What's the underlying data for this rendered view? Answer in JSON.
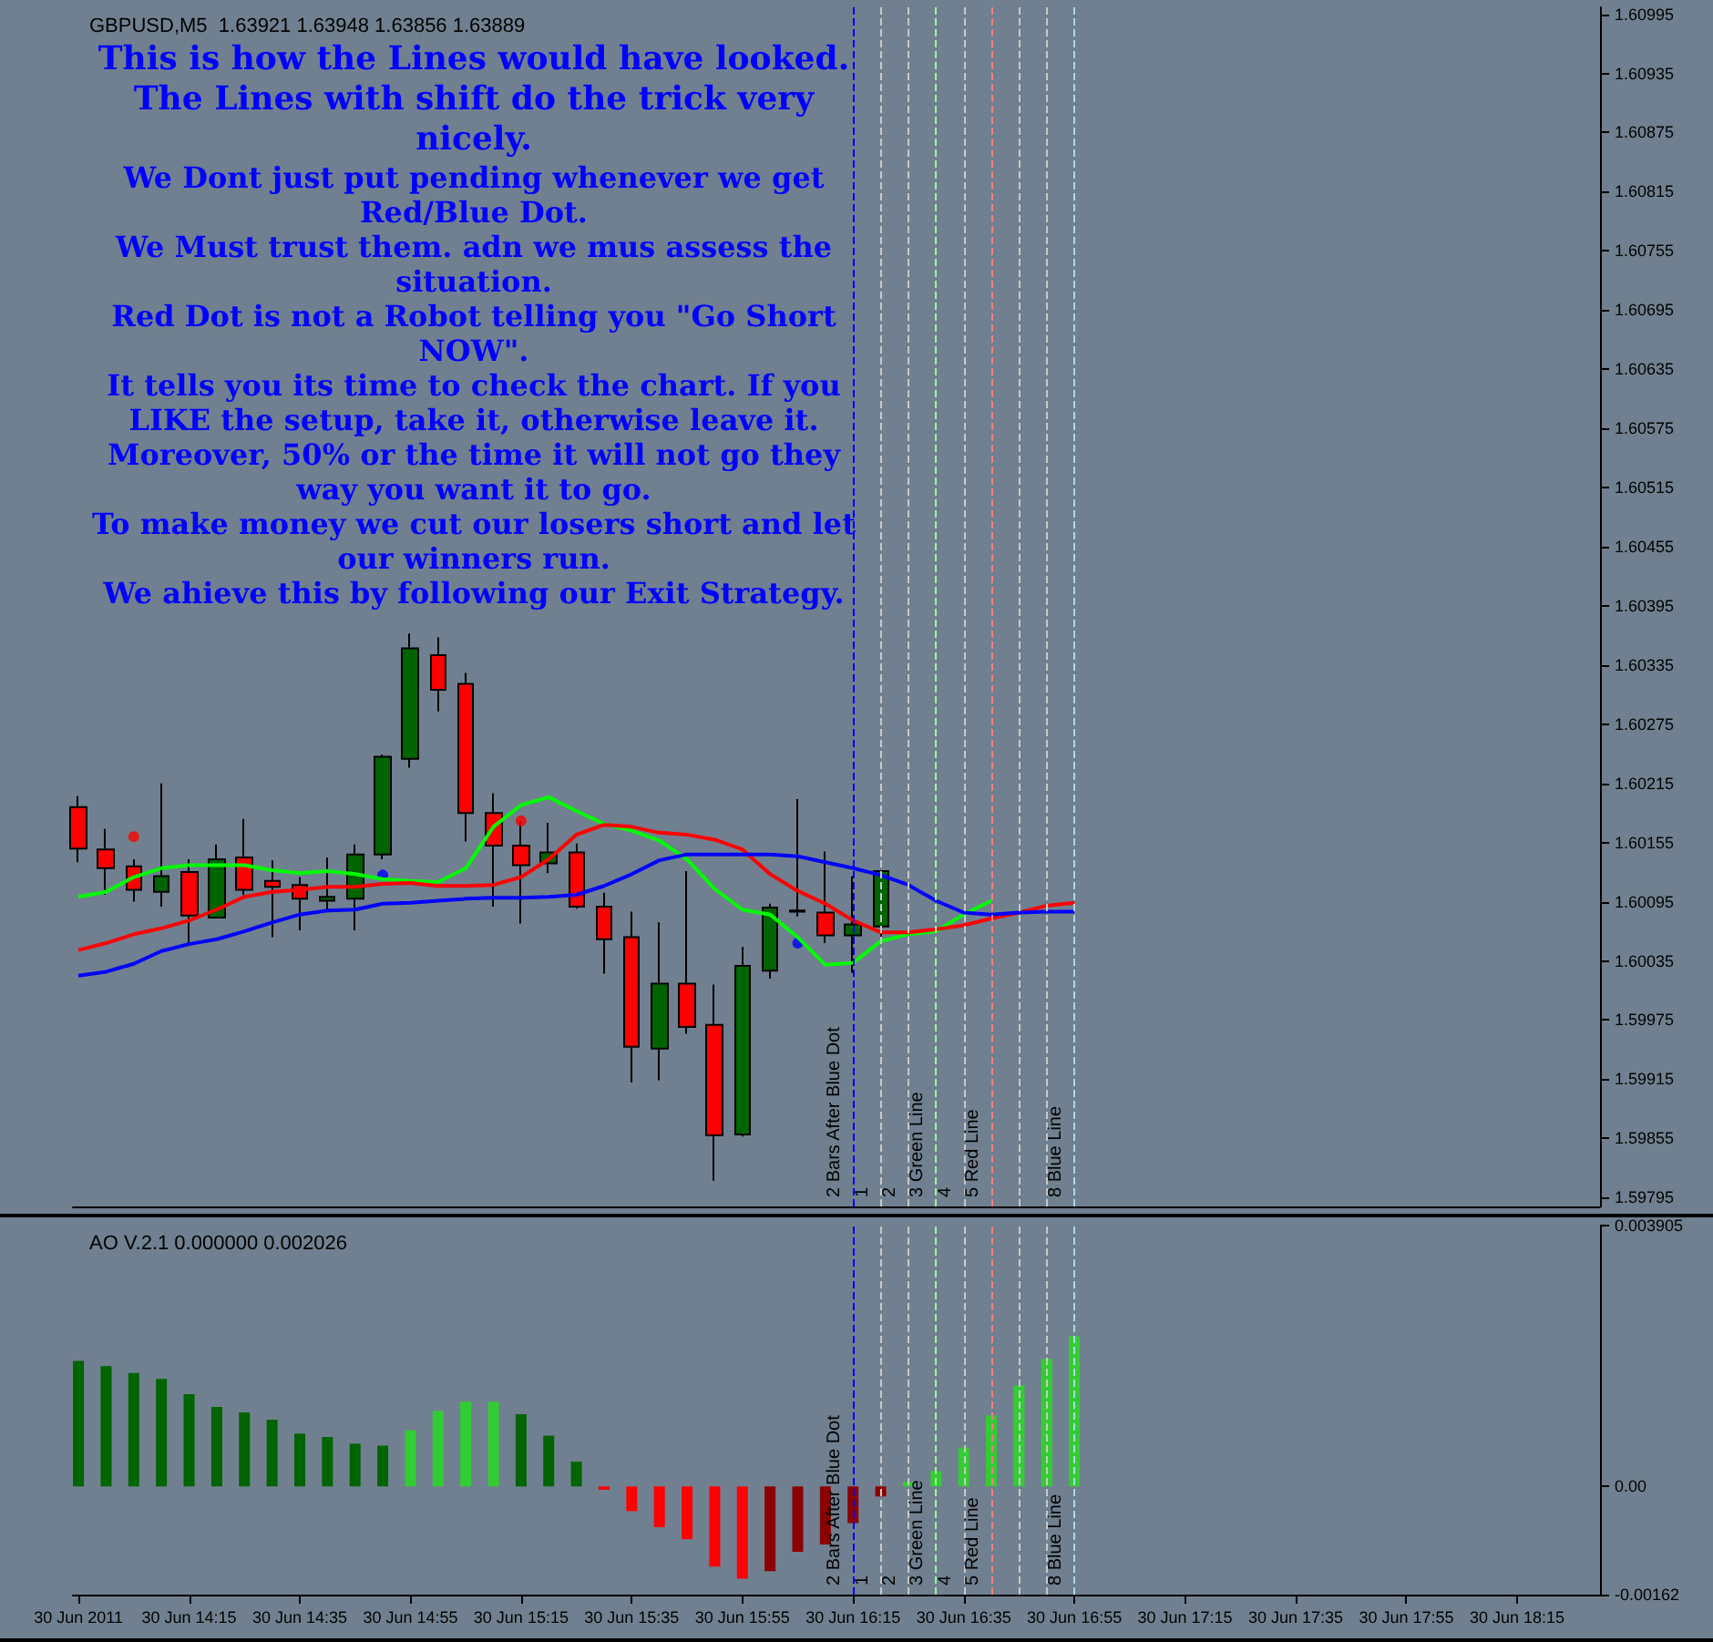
{
  "chart_data": [
    {
      "type": "candlestick",
      "title": "GBPUSD,M5  1.63921 1.63948 1.63856 1.63889",
      "annotations": [
        "This is how the Lines would have looked. The Lines with shift do the trick very nicely.",
        "We Dont just put pending whenever we get Red/Blue Dot.",
        "We Must trust them. adn we mus assess the situation.",
        "Red Dot is not a Robot telling you \"Go Short NOW\".",
        "It tells you its time to check the chart. If you LIKE the setup, take it, otherwise leave it.",
        "Moreover, 50% or the time it will not go they way you want it to go.",
        "To make money we cut our losers short and let our winners run.",
        "We ahieve this by following our Exit Strategy."
      ],
      "x": [
        "2011-06-30T13:55",
        "2011-06-30T14:00",
        "2011-06-30T14:05",
        "2011-06-30T14:10",
        "2011-06-30T14:15",
        "2011-06-30T14:20",
        "2011-06-30T14:25",
        "2011-06-30T14:30",
        "2011-06-30T14:35",
        "2011-06-30T14:40",
        "2011-06-30T14:45",
        "2011-06-30T14:50",
        "2011-06-30T14:55",
        "2011-06-30T15:00",
        "2011-06-30T15:05",
        "2011-06-30T15:10",
        "2011-06-30T15:15",
        "2011-06-30T15:20",
        "2011-06-30T15:25",
        "2011-06-30T15:30",
        "2011-06-30T15:35",
        "2011-06-30T15:40",
        "2011-06-30T15:45",
        "2011-06-30T15:50",
        "2011-06-30T15:55",
        "2011-06-30T16:00",
        "2011-06-30T16:05",
        "2011-06-30T16:10",
        "2011-06-30T16:15",
        "2011-06-30T16:20",
        "2011-06-30T16:25",
        "2011-06-30T16:30",
        "2011-06-30T16:35",
        "2011-06-30T16:40",
        "2011-06-30T16:45",
        "2011-06-30T16:50",
        "2011-06-30T16:55"
      ],
      "series": [
        {
          "type": "candlestick",
          "x": [
            "2011-06-30T13:55",
            "2011-06-30T14:00",
            "2011-06-30T14:05",
            "2011-06-30T14:10",
            "2011-06-30T14:15",
            "2011-06-30T14:20",
            "2011-06-30T14:25",
            "2011-06-30T14:30",
            "2011-06-30T14:35",
            "2011-06-30T14:40",
            "2011-06-30T14:45",
            "2011-06-30T14:50",
            "2011-06-30T14:55",
            "2011-06-30T15:00",
            "2011-06-30T15:05",
            "2011-06-30T15:10",
            "2011-06-30T15:15",
            "2011-06-30T15:20",
            "2011-06-30T15:25",
            "2011-06-30T15:30",
            "2011-06-30T15:35",
            "2011-06-30T15:40",
            "2011-06-30T15:45",
            "2011-06-30T15:50",
            "2011-06-30T15:55",
            "2011-06-30T16:00",
            "2011-06-30T16:05",
            "2011-06-30T16:10",
            "2011-06-30T16:15",
            "2011-06-30T16:20"
          ],
          "ohlc": [
            [
              1.60191,
              1.60202,
              1.60135,
              1.60149
            ],
            [
              1.60148,
              1.60169,
              1.60102,
              1.60129
            ],
            [
              1.60131,
              1.60138,
              1.60095,
              1.60107
            ],
            [
              1.60105,
              1.60215,
              1.6009,
              1.60121
            ],
            [
              1.60125,
              1.60138,
              1.60053,
              1.60081
            ],
            [
              1.60079,
              1.60153,
              1.60079,
              1.60138
            ],
            [
              1.6014,
              1.60179,
              1.60102,
              1.60107
            ],
            [
              1.60116,
              1.60137,
              1.60059,
              1.6011
            ],
            [
              1.60112,
              1.6012,
              1.60066,
              1.60098
            ],
            [
              1.60096,
              1.6014,
              1.60085,
              1.601
            ],
            [
              1.60098,
              1.60153,
              1.60066,
              1.60143
            ],
            [
              1.60143,
              1.60244,
              1.60138,
              1.60242
            ],
            [
              1.6024,
              1.60367,
              1.60231,
              1.60352
            ],
            [
              1.60345,
              1.60363,
              1.60288,
              1.6031
            ],
            [
              1.60316,
              1.60327,
              1.60156,
              1.60185
            ],
            [
              1.60185,
              1.60205,
              1.6009,
              1.60152
            ],
            [
              1.60152,
              1.60177,
              1.60073,
              1.60132
            ],
            [
              1.60134,
              1.60175,
              1.60124,
              1.60145
            ],
            [
              1.60145,
              1.60154,
              1.60088,
              1.6009
            ],
            [
              1.6009,
              1.60104,
              1.60022,
              1.60057
            ],
            [
              1.60059,
              1.60085,
              1.59912,
              1.59948
            ],
            [
              1.59946,
              1.60074,
              1.59914,
              1.60012
            ],
            [
              1.60012,
              1.60126,
              1.59961,
              1.59968
            ],
            [
              1.5997,
              1.60011,
              1.59812,
              1.59858
            ],
            [
              1.59859,
              1.60049,
              1.59857,
              1.6003
            ],
            [
              1.60025,
              1.60093,
              1.60017,
              1.60089
            ],
            [
              1.60086,
              1.60199,
              1.6008,
              1.60085
            ],
            [
              1.60084,
              1.60146,
              1.60053,
              1.60061
            ],
            [
              1.60061,
              1.60121,
              1.60023,
              1.60072
            ],
            [
              1.6007,
              1.60126,
              1.60059,
              1.60126
            ]
          ],
          "colors": [
            "#ff0000",
            "#ff0000",
            "#ff0000",
            "#006400",
            "#ff0000",
            "#006400",
            "#ff0000",
            "#ff0000",
            "#ff0000",
            "#006400",
            "#006400",
            "#006400",
            "#006400",
            "#ff0000",
            "#ff0000",
            "#ff0000",
            "#ff0000",
            "#006400",
            "#ff0000",
            "#ff0000",
            "#ff0000",
            "#006400",
            "#ff0000",
            "#ff0000",
            "#006400",
            "#006400",
            "#000000",
            "#ff0000",
            "#006400",
            "#006400"
          ]
        },
        {
          "type": "line",
          "marker": "none",
          "color": "#00ff00",
          "x": [
            "2011-06-30T13:55",
            "2011-06-30T14:00",
            "2011-06-30T14:05",
            "2011-06-30T14:10",
            "2011-06-30T14:15",
            "2011-06-30T14:20",
            "2011-06-30T14:25",
            "2011-06-30T14:30",
            "2011-06-30T14:35",
            "2011-06-30T14:40",
            "2011-06-30T14:45",
            "2011-06-30T14:50",
            "2011-06-30T14:55",
            "2011-06-30T15:00",
            "2011-06-30T15:05",
            "2011-06-30T15:10",
            "2011-06-30T15:15",
            "2011-06-30T15:20",
            "2011-06-30T15:25",
            "2011-06-30T15:30",
            "2011-06-30T15:35",
            "2011-06-30T15:40",
            "2011-06-30T15:45",
            "2011-06-30T15:50",
            "2011-06-30T15:55",
            "2011-06-30T16:00",
            "2011-06-30T16:05",
            "2011-06-30T16:10",
            "2011-06-30T16:15",
            "2011-06-30T16:20",
            "2011-06-30T16:25",
            "2011-06-30T16:30",
            "2011-06-30T16:35",
            "2011-06-30T16:40"
          ],
          "values": [
            1.601,
            1.60105,
            1.6012,
            1.60129,
            1.60132,
            1.60132,
            1.60132,
            1.60127,
            1.60124,
            1.60126,
            1.60123,
            1.60118,
            1.60116,
            1.60115,
            1.60129,
            1.60171,
            1.60193,
            1.60201,
            1.60187,
            1.60174,
            1.60167,
            1.60157,
            1.60138,
            1.60108,
            1.60087,
            1.60082,
            1.60059,
            1.60031,
            1.60033,
            1.60055,
            1.60062,
            1.60065,
            1.60082,
            1.60096
          ]
        },
        {
          "type": "line",
          "marker": "none",
          "color": "#ff0000",
          "values": [
            1.60046,
            1.60053,
            1.60062,
            1.60068,
            1.60076,
            1.60087,
            1.601,
            1.60105,
            1.60107,
            1.6011,
            1.6011,
            1.60113,
            1.60114,
            1.60111,
            1.60111,
            1.60112,
            1.6012,
            1.60138,
            1.60163,
            1.60173,
            1.60171,
            1.60165,
            1.60163,
            1.60158,
            1.60148,
            1.60123,
            1.60106,
            1.60093,
            1.60076,
            1.60064,
            1.60064,
            1.60067,
            1.60071,
            1.60078,
            1.60084,
            1.60091,
            1.60094
          ]
        },
        {
          "type": "line",
          "marker": "none",
          "color": "#0000ff",
          "values": [
            1.6002,
            1.60024,
            1.60032,
            1.60045,
            1.60052,
            1.60057,
            1.60065,
            1.60074,
            1.60082,
            1.60086,
            1.60087,
            1.60093,
            1.60094,
            1.60096,
            1.60098,
            1.60099,
            1.60099,
            1.601,
            1.60102,
            1.60111,
            1.60123,
            1.60137,
            1.60143,
            1.60143,
            1.60143,
            1.60143,
            1.60141,
            1.60135,
            1.60129,
            1.60122,
            1.60112,
            1.60096,
            1.60084,
            1.60082,
            1.60084,
            1.60085,
            1.60085
          ]
        },
        {
          "type": "scatter",
          "marker": "circle",
          "color": "#ff0000",
          "x": [
            "2011-06-30T14:05",
            "2011-06-30T15:15"
          ],
          "values": [
            1.60161,
            1.60177
          ]
        },
        {
          "type": "scatter",
          "marker": "circle",
          "color": "#0000ff",
          "x": [
            "2011-06-30T14:50",
            "2011-06-30T16:05"
          ],
          "values": [
            1.60122,
            1.60053
          ]
        }
      ],
      "xlim": [
        "2011-06-30T13:54",
        "2011-06-30T18:30"
      ],
      "ylim": [
        1.59786,
        1.61002
      ],
      "yticks": [
        1.60995,
        1.60935,
        1.60875,
        1.60815,
        1.60755,
        1.60695,
        1.60635,
        1.60575,
        1.60515,
        1.60455,
        1.60395,
        1.60335,
        1.60275,
        1.60215,
        1.60155,
        1.60095,
        1.60035,
        1.59975,
        1.59915,
        1.59855,
        1.59795
      ],
      "tick_labels": "y",
      "ref_lines": [
        {
          "axis": "x",
          "value": "2011-06-30T16:15",
          "label": "2 Bars After Blue Dot",
          "color": "#0000ff",
          "line_style": "dashed"
        },
        {
          "axis": "x",
          "value": "2011-06-30T16:20",
          "label": "1",
          "color": "#c8c8c8",
          "line_style": "dashed"
        },
        {
          "axis": "x",
          "value": "2011-06-30T16:25",
          "label": "2",
          "color": "#c8c8c8",
          "line_style": "dashed"
        },
        {
          "axis": "x",
          "value": "2011-06-30T16:30",
          "label": "3 Green Line",
          "color": "#98fb98",
          "line_style": "dashed"
        },
        {
          "axis": "x",
          "value": "2011-06-30T16:35",
          "label": "4",
          "color": "#c8c8c8",
          "line_style": "dashed"
        },
        {
          "axis": "x",
          "value": "2011-06-30T16:40",
          "label": "5 Red Line",
          "color": "#f08080",
          "line_style": "dashed"
        },
        {
          "axis": "x",
          "value": "2011-06-30T16:45",
          "label": null,
          "color": "#c8c8c8",
          "line_style": "dashed"
        },
        {
          "axis": "x",
          "value": "2011-06-30T16:50",
          "label": null,
          "color": "#c8c8c8",
          "line_style": "dashed"
        },
        {
          "axis": "x",
          "value": "2011-06-30T16:55",
          "label": "8 Blue Line",
          "color": "#add8e6",
          "line_style": "dashed"
        }
      ]
    },
    {
      "type": "bar",
      "title": "AO V.2.1 0.000000 0.002026",
      "x": [
        "2011-06-30T13:55",
        "2011-06-30T14:00",
        "2011-06-30T14:05",
        "2011-06-30T14:10",
        "2011-06-30T14:15",
        "2011-06-30T14:20",
        "2011-06-30T14:25",
        "2011-06-30T14:30",
        "2011-06-30T14:35",
        "2011-06-30T14:40",
        "2011-06-30T14:45",
        "2011-06-30T14:50",
        "2011-06-30T14:55",
        "2011-06-30T15:00",
        "2011-06-30T15:05",
        "2011-06-30T15:10",
        "2011-06-30T15:15",
        "2011-06-30T15:20",
        "2011-06-30T15:25",
        "2011-06-30T15:30",
        "2011-06-30T15:35",
        "2011-06-30T15:40",
        "2011-06-30T15:45",
        "2011-06-30T15:50",
        "2011-06-30T15:55",
        "2011-06-30T16:00",
        "2011-06-30T16:05",
        "2011-06-30T16:10",
        "2011-06-30T16:15",
        "2011-06-30T16:20",
        "2011-06-30T16:25",
        "2011-06-30T16:30",
        "2011-06-30T16:35",
        "2011-06-30T16:40",
        "2011-06-30T16:45",
        "2011-06-30T16:50",
        "2011-06-30T16:55"
      ],
      "values": [
        0.00188,
        0.0018,
        0.0017,
        0.00161,
        0.00138,
        0.00119,
        0.00111,
        0.001,
        0.00079,
        0.00074,
        0.00064,
        0.00061,
        0.00084,
        0.00113,
        0.00127,
        0.00127,
        0.00108,
        0.00076,
        0.00037,
        -5e-05,
        -0.00037,
        -0.00061,
        -0.00079,
        -0.0012,
        -0.00138,
        -0.00127,
        -0.00098,
        -0.00087,
        -0.00055,
        -0.00015,
        7e-05,
        0.00023,
        0.00058,
        0.00106,
        0.00151,
        0.00191,
        0.00225
      ],
      "colors": [
        "#006400",
        "#006400",
        "#006400",
        "#006400",
        "#006400",
        "#006400",
        "#006400",
        "#006400",
        "#006400",
        "#006400",
        "#006400",
        "#006400",
        "#32cd32",
        "#32cd32",
        "#32cd32",
        "#32cd32",
        "#006400",
        "#006400",
        "#006400",
        "#ff0000",
        "#ff0000",
        "#ff0000",
        "#ff0000",
        "#ff0000",
        "#ff0000",
        "#8b0000",
        "#8b0000",
        "#8b0000",
        "#8b0000",
        "#8b0000",
        "#32cd32",
        "#32cd32",
        "#32cd32",
        "#32cd32",
        "#32cd32",
        "#32cd32",
        "#32cd32"
      ],
      "xlim": [
        "2011-06-30T13:54",
        "2011-06-30T18:30"
      ],
      "xticks": [
        {
          "value": "2011-06-30T13:55",
          "label": "30 Jun 2011"
        },
        {
          "value": "2011-06-30T14:15",
          "label": "30 Jun 14:15"
        },
        {
          "value": "2011-06-30T14:35",
          "label": "30 Jun 14:35"
        },
        {
          "value": "2011-06-30T14:55",
          "label": "30 Jun 14:55"
        },
        {
          "value": "2011-06-30T15:15",
          "label": "30 Jun 15:15"
        },
        {
          "value": "2011-06-30T15:35",
          "label": "30 Jun 15:35"
        },
        {
          "value": "2011-06-30T15:55",
          "label": "30 Jun 15:55"
        },
        {
          "value": "2011-06-30T16:15",
          "label": "30 Jun 16:15"
        },
        {
          "value": "2011-06-30T16:35",
          "label": "30 Jun 16:35"
        },
        {
          "value": "2011-06-30T16:55",
          "label": "30 Jun 16:55"
        },
        {
          "value": "2011-06-30T17:15",
          "label": "30 Jun 17:15"
        },
        {
          "value": "2011-06-30T17:35",
          "label": "30 Jun 17:35"
        },
        {
          "value": "2011-06-30T17:55",
          "label": "30 Jun 17:55"
        },
        {
          "value": "2011-06-30T18:15",
          "label": "30 Jun 18:15"
        }
      ],
      "ylim": [
        -0.00162,
        0.003905
      ],
      "yticks": [
        0.003905,
        {
          "value": 0,
          "label": "0.00"
        },
        -0.00162
      ],
      "ref_lines": [
        {
          "axis": "x",
          "value": "2011-06-30T16:15",
          "label": "2 Bars After Blue Dot",
          "color": "#0000ff",
          "line_style": "dashed"
        },
        {
          "axis": "x",
          "value": "2011-06-30T16:20",
          "label": "1",
          "color": "#c8c8c8",
          "line_style": "dashed"
        },
        {
          "axis": "x",
          "value": "2011-06-30T16:25",
          "label": "2",
          "color": "#c8c8c8",
          "line_style": "dashed"
        },
        {
          "axis": "x",
          "value": "2011-06-30T16:30",
          "label": "3 Green Line",
          "color": "#98fb98",
          "line_style": "dashed"
        },
        {
          "axis": "x",
          "value": "2011-06-30T16:35",
          "label": "4",
          "color": "#c8c8c8",
          "line_style": "dashed"
        },
        {
          "axis": "x",
          "value": "2011-06-30T16:40",
          "label": "5 Red Line",
          "color": "#f08080",
          "line_style": "dashed"
        },
        {
          "axis": "x",
          "value": "2011-06-30T16:45",
          "label": null,
          "color": "#c8c8c8",
          "line_style": "dashed"
        },
        {
          "axis": "x",
          "value": "2011-06-30T16:50",
          "label": null,
          "color": "#c8c8c8",
          "line_style": "dashed"
        },
        {
          "axis": "x",
          "value": "2011-06-30T16:55",
          "label": "8 Blue Line",
          "color": "#add8e6",
          "line_style": "dashed"
        }
      ]
    }
  ]
}
